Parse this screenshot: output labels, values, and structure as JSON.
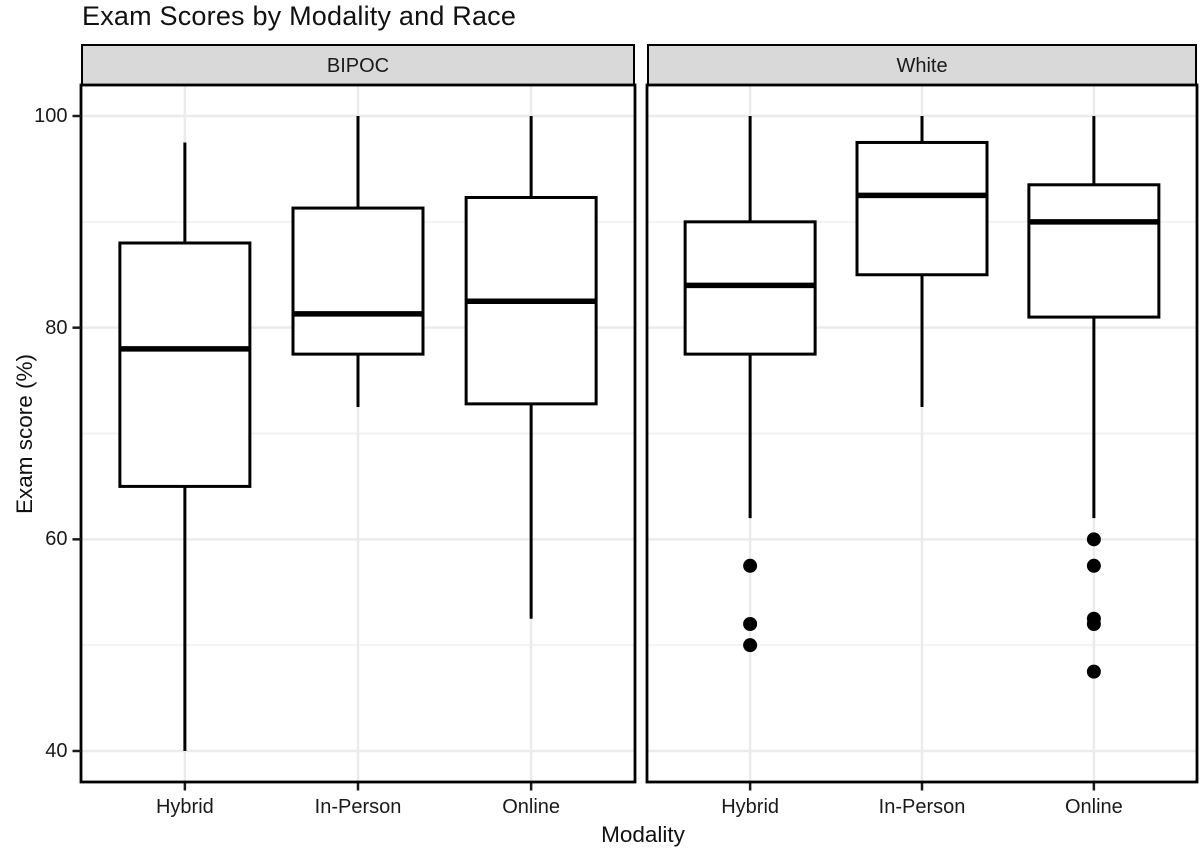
{
  "chart_data": {
    "type": "boxplot",
    "title": "Exam Scores by Modality and Race",
    "xlabel": "Modality",
    "ylabel": "Exam score (%)",
    "facet_variable_values": [
      "BIPOC",
      "White"
    ],
    "categories": [
      "Hybrid",
      "In-Person",
      "Online"
    ],
    "y_ticks": [
      40,
      60,
      80,
      100
    ],
    "y_minor_gridlines": [
      50,
      70,
      90
    ],
    "ylim": [
      37.1,
      102.9
    ],
    "grid": true,
    "legend_position": "none",
    "facets": [
      {
        "label": "BIPOC",
        "boxes": [
          {
            "category": "Hybrid",
            "whisker_low": 40,
            "q1": 65,
            "median": 78,
            "q3": 88,
            "whisker_high": 97.5,
            "outliers": []
          },
          {
            "category": "In-Person",
            "whisker_low": 72.5,
            "q1": 77.5,
            "median": 81.3,
            "q3": 91.3,
            "whisker_high": 100,
            "outliers": []
          },
          {
            "category": "Online",
            "whisker_low": 52.5,
            "q1": 72.8,
            "median": 82.5,
            "q3": 92.3,
            "whisker_high": 100,
            "outliers": []
          }
        ]
      },
      {
        "label": "White",
        "boxes": [
          {
            "category": "Hybrid",
            "whisker_low": 62,
            "q1": 77.5,
            "median": 84,
            "q3": 90,
            "whisker_high": 100,
            "outliers": [
              57.5,
              52,
              50
            ]
          },
          {
            "category": "In-Person",
            "whisker_low": 72.5,
            "q1": 85,
            "median": 92.5,
            "q3": 97.5,
            "whisker_high": 100,
            "outliers": []
          },
          {
            "category": "Online",
            "whisker_low": 62,
            "q1": 81,
            "median": 90,
            "q3": 93.5,
            "whisker_high": 100,
            "outliers": [
              60,
              57.5,
              52.5,
              52,
              47.5
            ]
          }
        ]
      }
    ],
    "colors": {
      "box_stroke": "#000000",
      "box_fill": "#ffffff",
      "median": "#000000",
      "outlier": "#000000",
      "strip_fill": "#d9d9d9",
      "panel_border": "#000000",
      "panel_bg": "#ffffff",
      "grid_major": "#ebebeb",
      "grid_minor": "#f2f2f2",
      "tick": "#1a1a1a",
      "text": "#1a1a1a"
    }
  }
}
